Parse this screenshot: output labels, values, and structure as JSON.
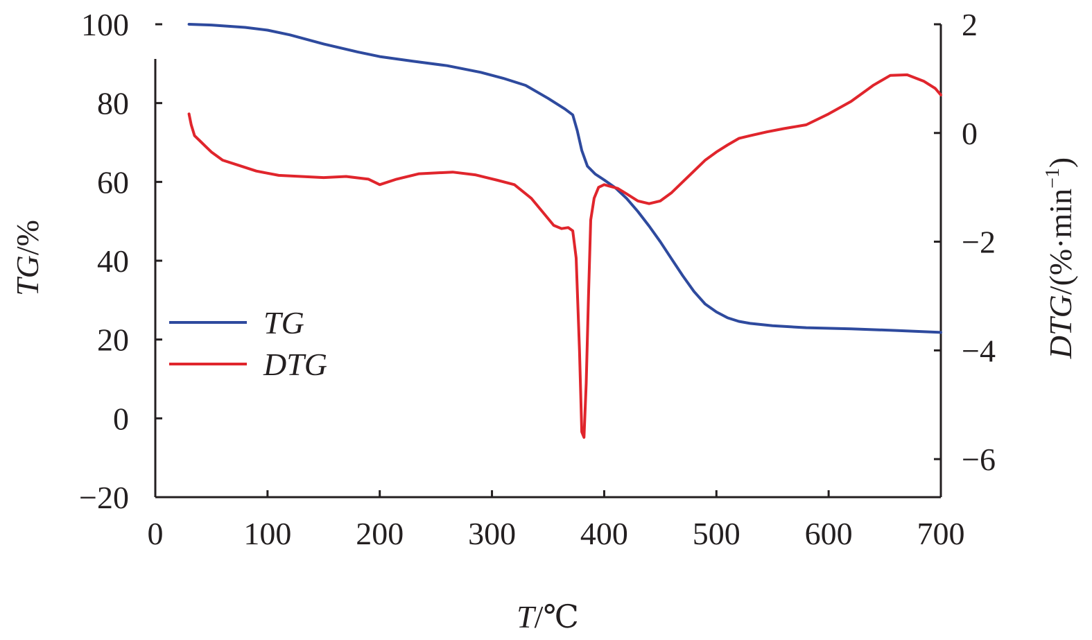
{
  "chart_data": {
    "type": "line",
    "x_axis": {
      "label_italic": "T",
      "label_unit": "/℃",
      "range": [
        0,
        700
      ],
      "ticks": [
        0,
        100,
        200,
        300,
        400,
        500,
        600,
        700
      ],
      "tick_labels": [
        "0",
        "100",
        "200",
        "300",
        "400",
        "500",
        "600",
        "700"
      ]
    },
    "y_left": {
      "label_italic": "TG",
      "label_unit": "/%",
      "range": [
        -20,
        100
      ],
      "ticks": [
        -20,
        0,
        20,
        40,
        60,
        80,
        100
      ],
      "tick_labels": [
        "−20",
        "0",
        "20",
        "40",
        "60",
        "80",
        "100"
      ]
    },
    "y_right": {
      "label_italic": "DTG",
      "label_unit": "/(%·min",
      "label_sup": "−1",
      "label_close": ")",
      "range": [
        -6.7,
        2
      ],
      "ticks": [
        -6,
        -4,
        -2,
        0,
        2
      ],
      "tick_labels": [
        "−6",
        "−4",
        "−2",
        "0",
        "2"
      ]
    },
    "grid": false,
    "legend_position": "left-middle",
    "series": [
      {
        "name": "TG",
        "axis": "left",
        "color": "#2e4a9e",
        "x": [
          30,
          50,
          80,
          100,
          120,
          150,
          180,
          200,
          230,
          260,
          290,
          310,
          330,
          350,
          365,
          372,
          376,
          380,
          385,
          392,
          400,
          410,
          420,
          430,
          440,
          450,
          460,
          470,
          480,
          490,
          500,
          510,
          520,
          530,
          550,
          580,
          620,
          660,
          700
        ],
        "values": [
          100,
          99.8,
          99.2,
          98.5,
          97.3,
          95,
          93,
          91.8,
          90.6,
          89.5,
          87.8,
          86.3,
          84.5,
          81.2,
          78.5,
          77,
          73,
          68,
          64,
          62,
          60.5,
          58.5,
          55.8,
          52.5,
          48.8,
          44.8,
          40.5,
          36.2,
          32.2,
          29,
          27,
          25.5,
          24.6,
          24.1,
          23.5,
          23,
          22.7,
          22.3,
          21.8
        ]
      },
      {
        "name": "DTG",
        "axis": "right",
        "color": "#e0252c",
        "x": [
          30,
          32,
          35,
          40,
          45,
          50,
          60,
          75,
          90,
          110,
          130,
          150,
          170,
          190,
          200,
          215,
          235,
          265,
          285,
          305,
          320,
          335,
          345,
          355,
          362,
          368,
          372,
          375,
          378,
          380,
          382,
          384,
          386,
          388,
          391,
          395,
          400,
          405,
          412,
          420,
          430,
          440,
          450,
          460,
          470,
          480,
          490,
          500,
          510,
          520,
          530,
          545,
          560,
          580,
          600,
          620,
          640,
          655,
          670,
          685,
          695,
          700
        ],
        "values": [
          0.35,
          0.15,
          -0.05,
          -0.15,
          -0.25,
          -0.35,
          -0.5,
          -0.6,
          -0.7,
          -0.78,
          -0.8,
          -0.82,
          -0.8,
          -0.85,
          -0.95,
          -0.85,
          -0.75,
          -0.72,
          -0.77,
          -0.87,
          -0.95,
          -1.2,
          -1.45,
          -1.7,
          -1.76,
          -1.74,
          -1.8,
          -2.3,
          -4.0,
          -5.5,
          -5.6,
          -4.6,
          -3.0,
          -1.6,
          -1.2,
          -1.0,
          -0.95,
          -0.98,
          -1.02,
          -1.12,
          -1.25,
          -1.3,
          -1.25,
          -1.1,
          -0.9,
          -0.7,
          -0.5,
          -0.35,
          -0.22,
          -0.1,
          -0.05,
          0.02,
          0.08,
          0.15,
          0.35,
          0.58,
          0.88,
          1.06,
          1.07,
          0.95,
          0.82,
          0.7
        ]
      }
    ]
  }
}
